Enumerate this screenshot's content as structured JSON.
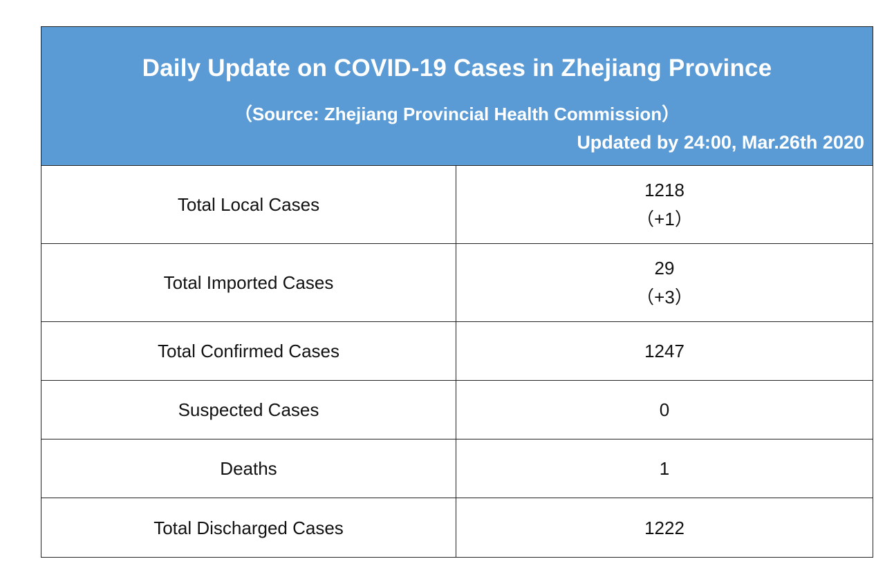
{
  "header": {
    "title": "Daily Update on COVID-19 Cases in Zhejiang Province",
    "source": "（Source: Zhejiang Provincial Health Commission）",
    "updated": "Updated by 24:00, Mar.26th 2020"
  },
  "rows": [
    {
      "label": "Total Local Cases",
      "value": "1218",
      "change": "（+1）"
    },
    {
      "label": "Total Imported Cases",
      "value": "29",
      "change": "（+3）"
    },
    {
      "label": "Total Confirmed Cases",
      "value": "1247"
    },
    {
      "label": "Suspected Cases",
      "value": "0"
    },
    {
      "label": "Deaths",
      "value": "1"
    },
    {
      "label": "Total Discharged Cases",
      "value": "1222"
    }
  ],
  "colors": {
    "banner": "#5b9bd5",
    "banner_text": "#ffffff",
    "border": "#222222"
  }
}
